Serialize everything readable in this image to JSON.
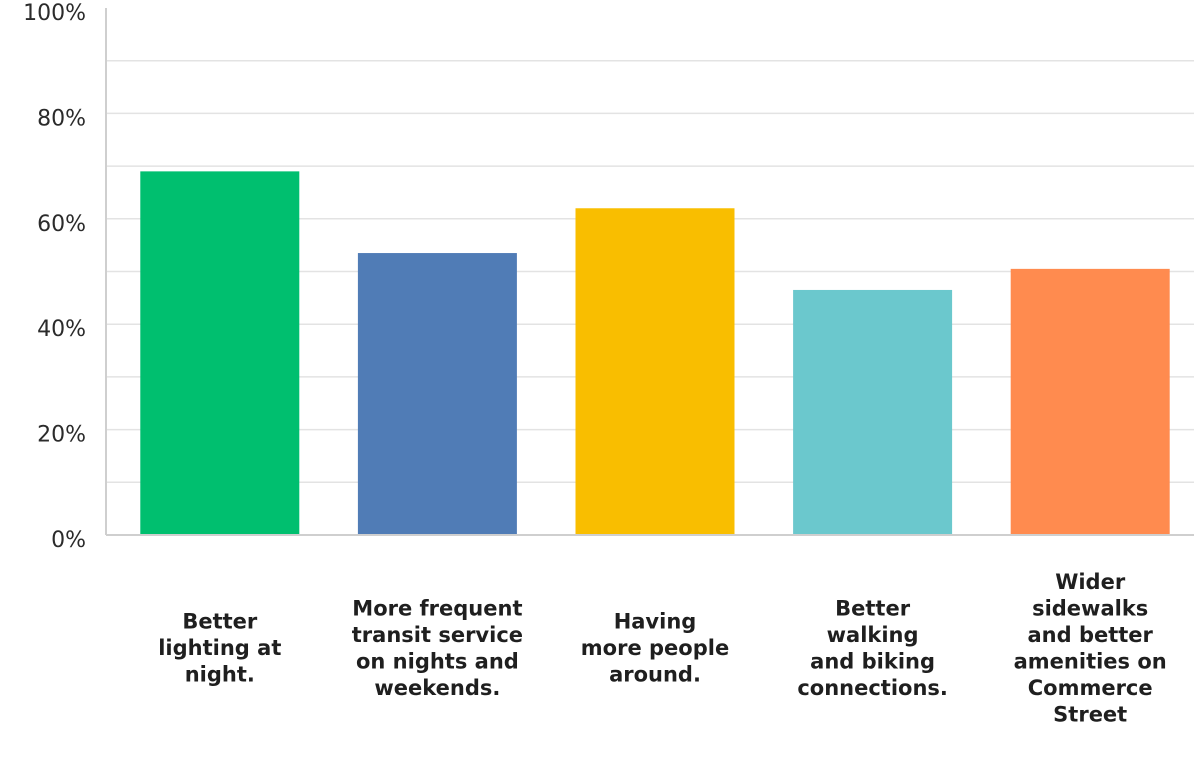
{
  "chart_data": {
    "type": "bar",
    "title": "",
    "xlabel": "",
    "ylabel": "",
    "ylim": [
      0,
      100
    ],
    "y_ticks": [
      "0%",
      "20%",
      "40%",
      "60%",
      "80%",
      "100%"
    ],
    "y_tick_values": [
      0,
      20,
      40,
      60,
      80,
      100
    ],
    "grid_step": 10,
    "grid": true,
    "legend": "none",
    "categories": [
      [
        "Better",
        "lighting at",
        "night."
      ],
      [
        "More frequent",
        "transit service",
        "on nights and",
        "weekends."
      ],
      [
        "Having",
        "more people",
        "around."
      ],
      [
        "Better",
        "walking",
        "and biking",
        "connections."
      ],
      [
        "Wider",
        "sidewalks",
        "and better",
        "amenities on",
        "Commerce",
        "Street"
      ]
    ],
    "values": [
      69,
      53.5,
      62,
      46.5,
      50.5
    ],
    "colors": [
      "#00bf6f",
      "#507cb6",
      "#f9be00",
      "#6bc8cd",
      "#ff8b4f"
    ]
  }
}
